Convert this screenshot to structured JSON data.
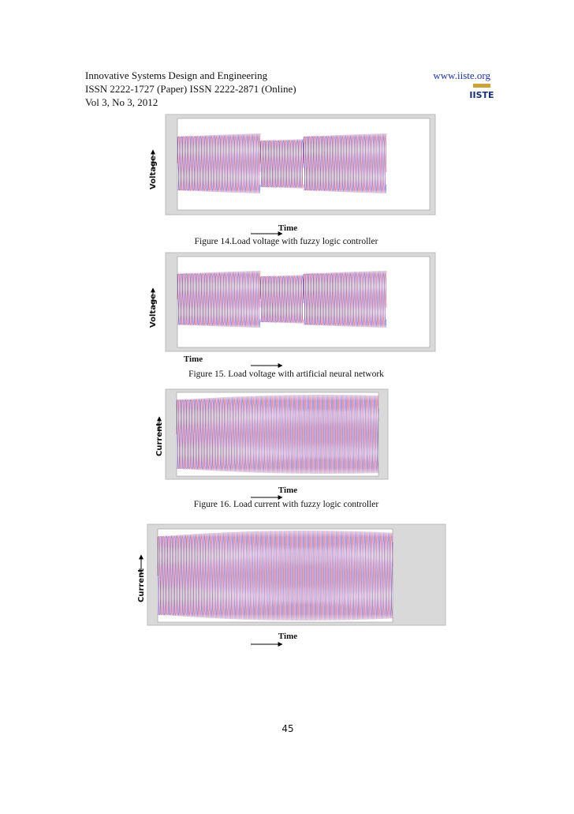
{
  "header": {
    "journal": "Innovative Systems Design and Engineering",
    "issn": "ISSN 2222-1727 (Paper) ISSN 2222-2871 (Online)",
    "volume": "Vol 3, No 3, 2012",
    "website": "www.iiste.org",
    "logo": "IISTE"
  },
  "figures": [
    {
      "y_label": "Voltage",
      "x_label": "Time",
      "caption": "Figure 14.Load voltage with fuzzy logic controller"
    },
    {
      "y_label": "Voltage",
      "x_label": "Time",
      "caption": "Figure 15. Load voltage with artificial neural network"
    },
    {
      "y_label": "Current",
      "x_label": "Time",
      "caption": "Figure 16. Load current with fuzzy logic controller"
    },
    {
      "y_label": "Current",
      "x_label": "Time"
    }
  ],
  "page_number": "45"
}
